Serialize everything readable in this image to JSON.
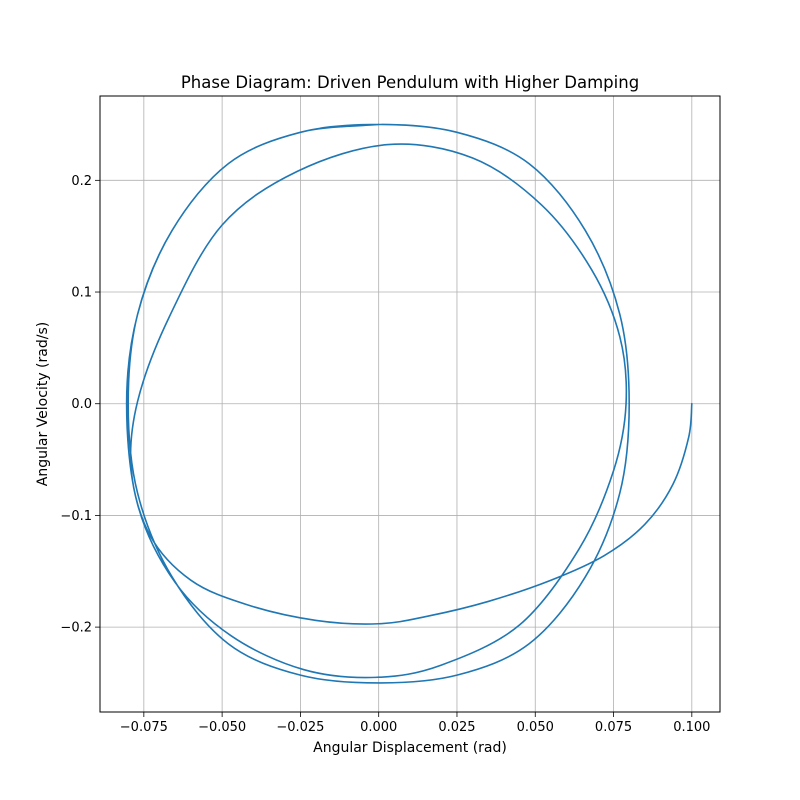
{
  "chart_data": {
    "type": "line",
    "title": "Phase Diagram: Driven Pendulum with Higher Damping",
    "xlabel": "Angular Displacement (rad)",
    "ylabel": "Angular Velocity (rad/s)",
    "xlim": [
      -0.089,
      0.109
    ],
    "ylim": [
      -0.276,
      0.2755
    ],
    "x_ticks": [
      -0.075,
      -0.05,
      -0.025,
      0.0,
      0.025,
      0.05,
      0.075,
      0.1
    ],
    "x_tick_labels": [
      "−0.075",
      "−0.050",
      "−0.025",
      "0.000",
      "0.025",
      "0.050",
      "0.075",
      "0.100"
    ],
    "y_ticks": [
      -0.2,
      -0.1,
      0.0,
      0.1,
      0.2
    ],
    "y_tick_labels": [
      "−0.2",
      "−0.1",
      "0.0",
      "0.1",
      "0.2"
    ],
    "grid": true,
    "series": [
      {
        "color": "#1f77b4",
        "x": [
          0.1,
          0.099,
          0.094,
          0.085,
          0.072,
          0.055,
          0.035,
          0.016,
          0.0,
          -0.02,
          -0.042,
          -0.06,
          -0.073,
          -0.079,
          -0.077,
          -0.067,
          -0.05,
          -0.026,
          0.003,
          0.03,
          0.052,
          0.068,
          0.077,
          0.079,
          0.075,
          0.064,
          0.045,
          0.02,
          -0.001,
          -0.024,
          -0.047,
          -0.065,
          -0.077,
          -0.0805,
          -0.077,
          -0.066,
          -0.048,
          -0.025,
          0.0,
          0.025,
          0.048,
          0.066,
          0.077,
          0.08,
          0.077,
          0.066,
          0.048,
          0.025,
          0.0,
          -0.025,
          -0.048,
          -0.066,
          -0.077,
          -0.08,
          -0.077,
          -0.066,
          -0.048,
          -0.025,
          0.0
        ],
        "y": [
          0.0,
          -0.03,
          -0.072,
          -0.108,
          -0.136,
          -0.158,
          -0.177,
          -0.19,
          -0.197,
          -0.194,
          -0.18,
          -0.158,
          -0.118,
          -0.06,
          0.002,
          0.077,
          0.16,
          0.208,
          0.232,
          0.22,
          0.178,
          0.12,
          0.06,
          0.0,
          -0.06,
          -0.13,
          -0.198,
          -0.234,
          -0.245,
          -0.238,
          -0.208,
          -0.16,
          -0.09,
          0.0,
          0.08,
          0.155,
          0.215,
          0.243,
          0.25,
          0.243,
          0.215,
          0.155,
          0.08,
          0.0,
          -0.08,
          -0.155,
          -0.215,
          -0.243,
          -0.25,
          -0.243,
          -0.215,
          -0.155,
          -0.08,
          0.0,
          0.08,
          0.155,
          0.215,
          0.243,
          0.25
        ]
      }
    ]
  }
}
